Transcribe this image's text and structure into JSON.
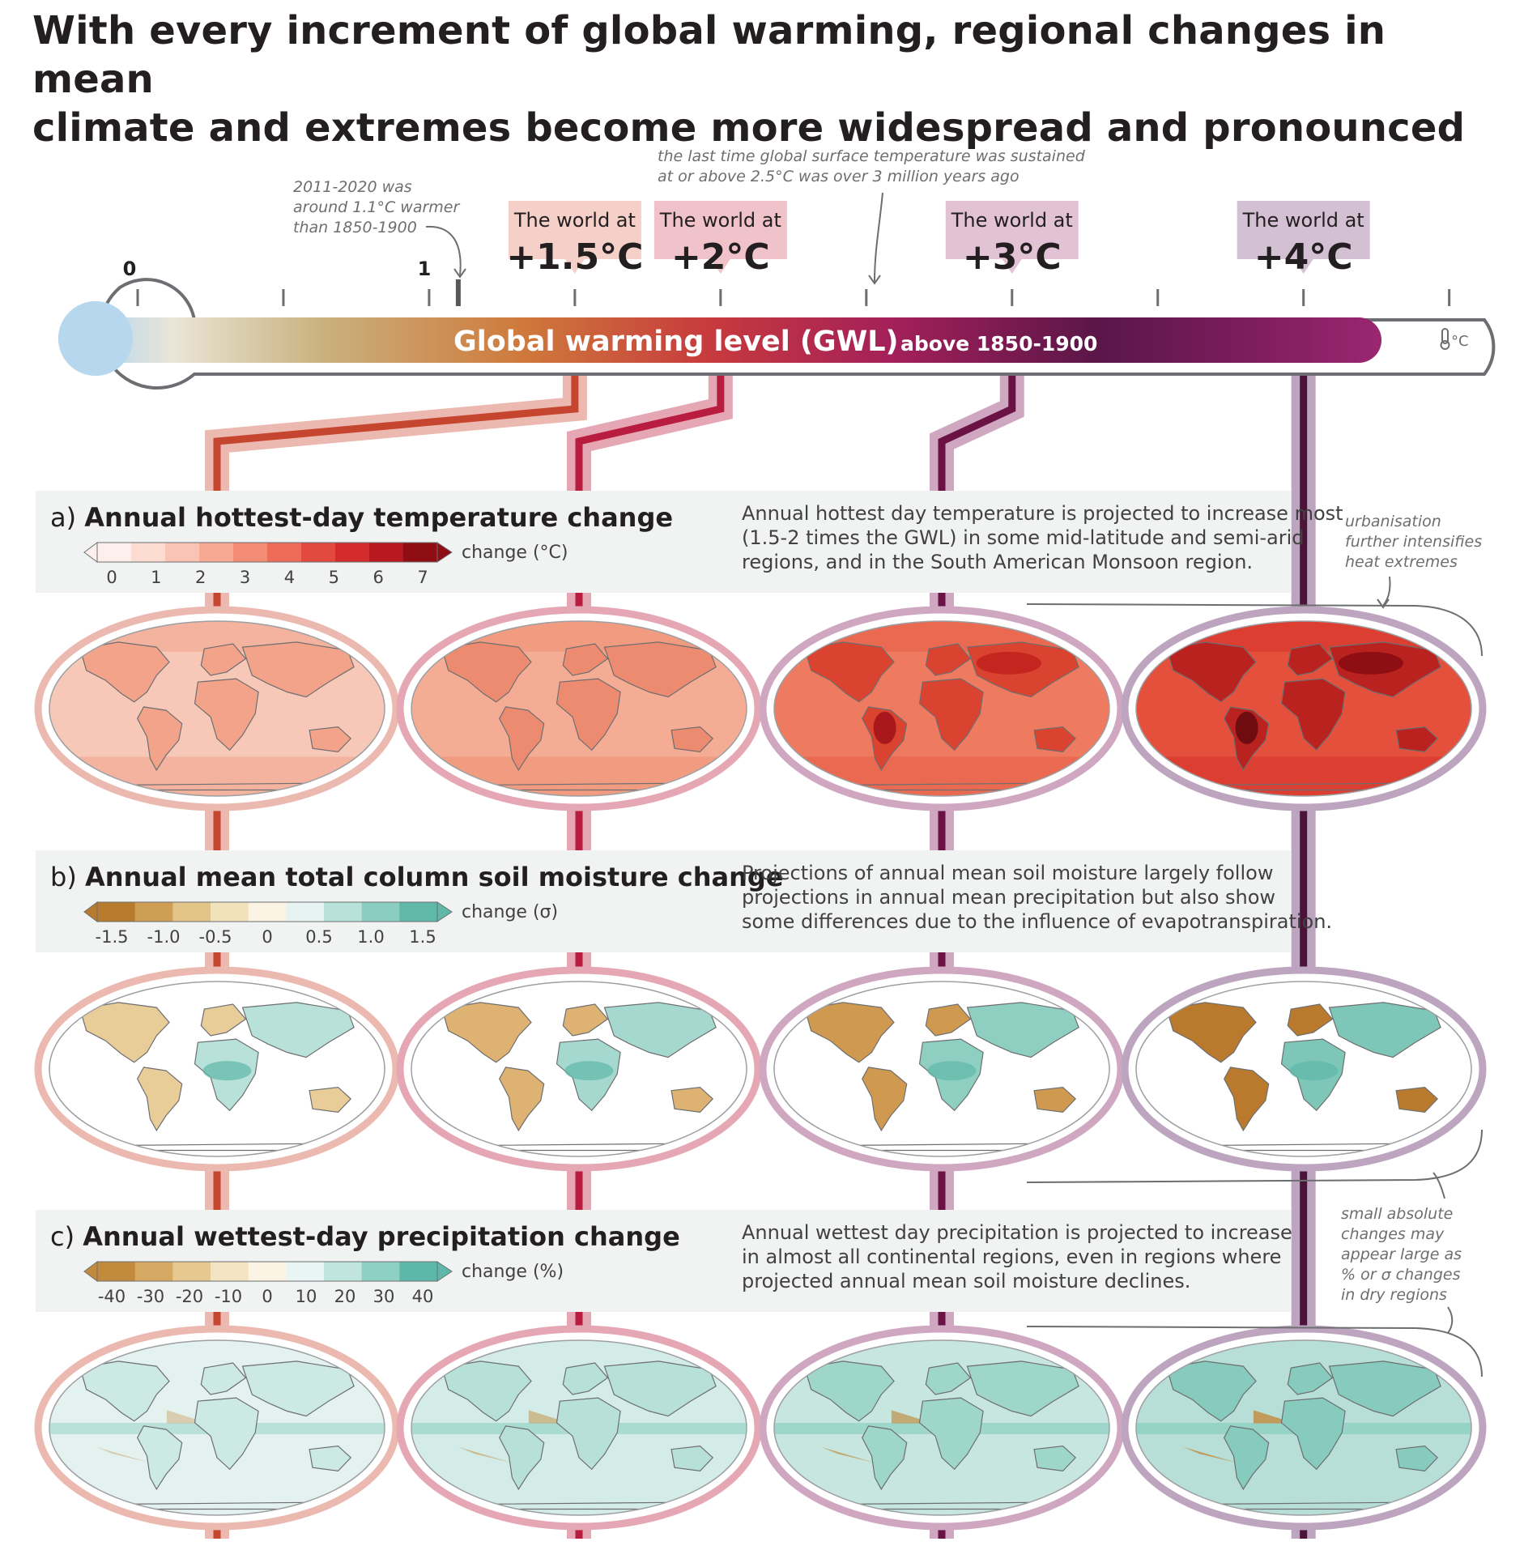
{
  "title": {
    "line1": "With every increment of global warming, regional changes in mean",
    "line2": "climate and extremes become more widespread and pronounced"
  },
  "axis": {
    "bar_label": "Global warming level (GWL)",
    "bar_label_small": "above 1850-1900",
    "unit": "°C",
    "unit_icon": "thermometer-icon",
    "tick_labels": [
      "0",
      "1"
    ],
    "ticks": [
      0,
      0.5,
      1,
      1.5,
      2,
      2.5,
      3,
      3.5,
      4,
      4.5
    ],
    "current_marker": 1.1,
    "gradient_colors": [
      "#b7d7ef",
      "#e9e5d7",
      "#c9b07c",
      "#cf7a3c",
      "#c7393d",
      "#a3205a",
      "#5a1648",
      "#7d1d5e",
      "#9b2671"
    ]
  },
  "annotations": {
    "recent": [
      "2011-2020 was",
      "around 1.1°C warmer",
      "than 1850-1900"
    ],
    "paleo": [
      "the last time global surface temperature was sustained",
      "at or above 2.5°C was over 3 million years ago"
    ],
    "urbanisation": [
      "urbanisation",
      "further intensifies",
      "heat extremes"
    ],
    "dry_regions": [
      "small absolute",
      "changes may",
      "appear large as",
      "% or σ changes",
      "in dry regions"
    ]
  },
  "levels": [
    {
      "prefix": "The world at",
      "label": "+1.5°C",
      "gwl": 1.5,
      "tag_color": "#f4d0c8",
      "line_light": "#ecb9b0",
      "line_dark": "#c5452f"
    },
    {
      "prefix": "The world at",
      "label": "+2°C",
      "gwl": 2,
      "tag_color": "#f0c3cb",
      "line_light": "#e6a7b4",
      "line_dark": "#b81c3f"
    },
    {
      "prefix": "The world at",
      "label": "+3°C",
      "gwl": 3,
      "tag_color": "#e2c2d5",
      "line_light": "#cfa7c1",
      "line_dark": "#6b1245"
    },
    {
      "prefix": "The world at",
      "label": "+4°C",
      "gwl": 4,
      "tag_color": "#d3c1d3",
      "line_light": "#bda5bf",
      "line_dark": "#4c1339"
    }
  ],
  "panels": [
    {
      "letter": "a)",
      "title": "Annual hottest-day temperature change",
      "desc": [
        "Annual hottest day temperature is projected to increase most",
        "(1.5-2 times the GWL) in some mid-latitude and semi-arid",
        "regions, and in the South American Monsoon region."
      ],
      "legend_unit": "change (°C)",
      "legend_ticks": [
        "0",
        "1",
        "2",
        "3",
        "4",
        "5",
        "6",
        "7"
      ],
      "legend_colors": [
        "#fdf0ec",
        "#fcdcd1",
        "#f9c4b3",
        "#f6a993",
        "#f28c74",
        "#ec6c58",
        "#e34a3f",
        "#d42c2c",
        "#b8181f",
        "#8e0e14"
      ],
      "map_palette": "heat"
    },
    {
      "letter": "b)",
      "title": "Annual mean total column soil moisture change",
      "desc": [
        "Projections of annual mean soil moisture largely follow",
        "projections in annual mean precipitation but also show",
        "some differences due to the influence of evapotranspiration."
      ],
      "legend_unit": "change (σ)",
      "legend_ticks": [
        "-1.5",
        "-1.0",
        "-0.5",
        "0",
        "0.5",
        "1.0",
        "1.5"
      ],
      "legend_colors": [
        "#b87a2c",
        "#cf9e55",
        "#e3c488",
        "#f2e2bb",
        "#fbf4e4",
        "#e6f3f0",
        "#b8e1d9",
        "#8ccdc1",
        "#5fb8a8"
      ],
      "map_palette": "soil"
    },
    {
      "letter": "c)",
      "title": "Annual wettest-day precipitation change",
      "desc": [
        "Annual wettest day precipitation is projected to increase",
        "in almost all continental regions, even in regions where",
        "projected annual mean soil moisture declines."
      ],
      "legend_unit": "change (%)",
      "legend_ticks": [
        "-40",
        "-30",
        "-20",
        "-10",
        "0",
        "10",
        "20",
        "30",
        "40"
      ],
      "legend_colors": [
        "#c28a3c",
        "#d6a962",
        "#e7c88f",
        "#f4e3c0",
        "#fbf4e4",
        "#e8f5f2",
        "#bfe5de",
        "#8fd0c4",
        "#5cb9a9"
      ],
      "map_palette": "precip"
    }
  ]
}
